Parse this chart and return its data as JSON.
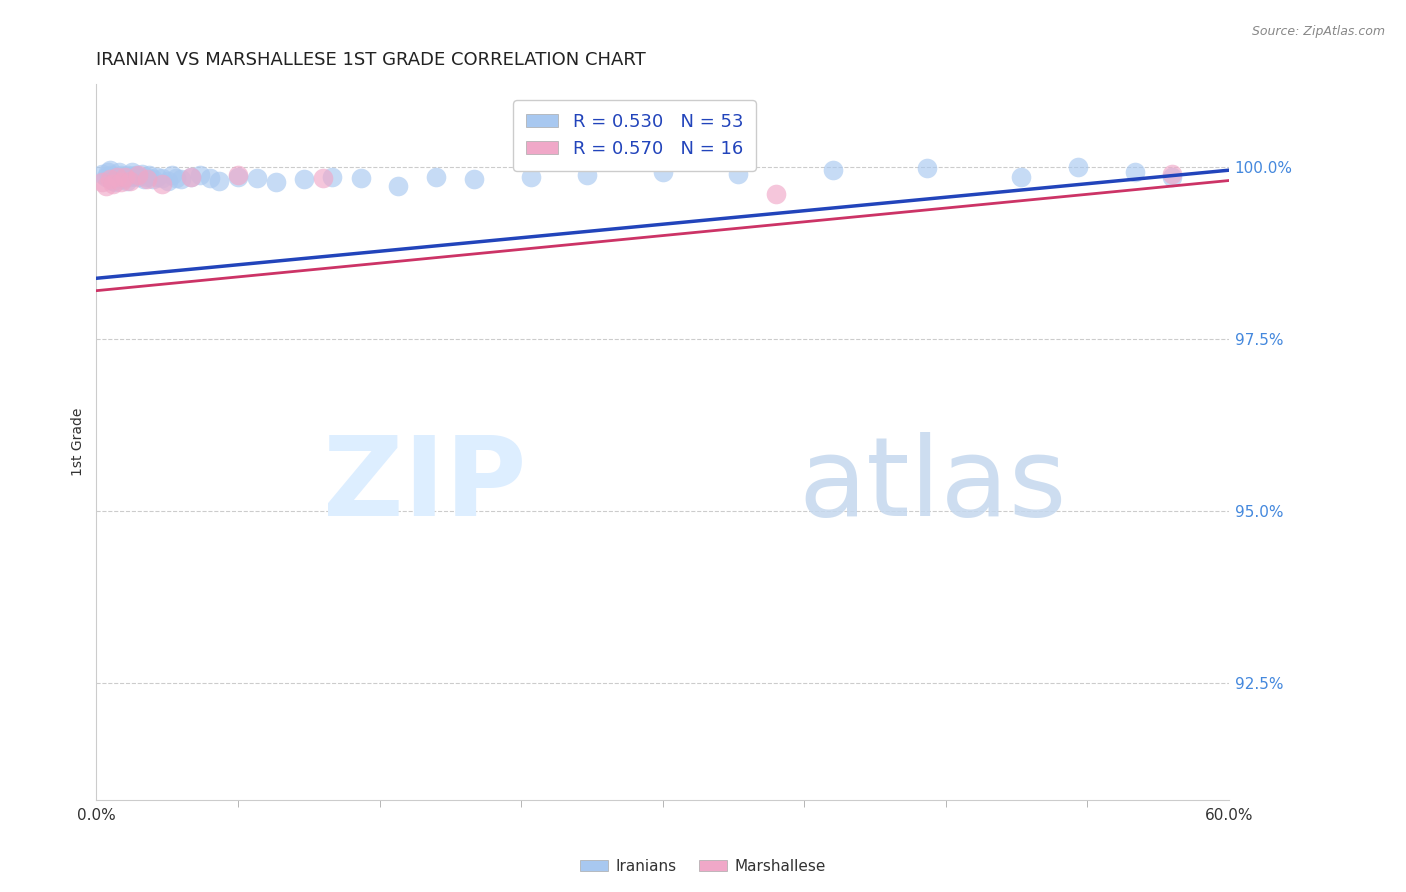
{
  "title": "IRANIAN VS MARSHALLESE 1ST GRADE CORRELATION CHART",
  "source": "Source: ZipAtlas.com",
  "ylabel": "1st Grade",
  "ytick_labels": [
    "100.0%",
    "97.5%",
    "95.0%",
    "92.5%"
  ],
  "ytick_values": [
    1.0,
    0.975,
    0.95,
    0.925
  ],
  "xlim": [
    0.0,
    0.6
  ],
  "ylim": [
    0.908,
    1.012
  ],
  "iranian_color": "#a8c8f0",
  "marshallese_color": "#f0a8c8",
  "iranian_line_color": "#2244bb",
  "marshallese_line_color": "#cc3366",
  "background_color": "#ffffff",
  "grid_color": "#cccccc",
  "right_axis_color": "#4488dd",
  "iranian_scatter_x": [
    0.003,
    0.005,
    0.006,
    0.007,
    0.008,
    0.009,
    0.01,
    0.011,
    0.012,
    0.013,
    0.014,
    0.015,
    0.016,
    0.017,
    0.018,
    0.019,
    0.02,
    0.021,
    0.022,
    0.024,
    0.025,
    0.027,
    0.028,
    0.03,
    0.032,
    0.035,
    0.038,
    0.04,
    0.042,
    0.045,
    0.05,
    0.055,
    0.06,
    0.065,
    0.075,
    0.085,
    0.095,
    0.11,
    0.125,
    0.14,
    0.16,
    0.18,
    0.2,
    0.23,
    0.26,
    0.3,
    0.34,
    0.39,
    0.44,
    0.49,
    0.52,
    0.55,
    0.57
  ],
  "iranian_scatter_y": [
    0.999,
    0.9985,
    0.9992,
    0.9995,
    0.9988,
    0.998,
    0.9978,
    0.9985,
    0.9992,
    0.9988,
    0.9982,
    0.9985,
    0.998,
    0.9988,
    0.9985,
    0.9992,
    0.9986,
    0.9988,
    0.9985,
    0.999,
    0.9982,
    0.9985,
    0.9988,
    0.9982,
    0.9985,
    0.9984,
    0.998,
    0.9988,
    0.9984,
    0.9982,
    0.9985,
    0.9988,
    0.9984,
    0.998,
    0.9985,
    0.9984,
    0.9978,
    0.9982,
    0.9985,
    0.9984,
    0.9972,
    0.9985,
    0.9982,
    0.9985,
    0.9988,
    0.9992,
    0.999,
    0.9995,
    0.9998,
    0.9985,
    1.0,
    0.9992,
    0.9985
  ],
  "marshallese_scatter_x": [
    0.003,
    0.005,
    0.007,
    0.009,
    0.011,
    0.013,
    0.015,
    0.018,
    0.022,
    0.027,
    0.035,
    0.05,
    0.075,
    0.12,
    0.36,
    0.57
  ],
  "marshallese_scatter_y": [
    0.9978,
    0.9972,
    0.9982,
    0.9975,
    0.9985,
    0.9978,
    0.9985,
    0.998,
    0.9988,
    0.9982,
    0.9975,
    0.9985,
    0.9988,
    0.9984,
    0.996,
    0.999
  ],
  "iranian_line_x0": 0.0,
  "iranian_line_x1": 0.6,
  "iranian_line_y0": 0.9838,
  "iranian_line_y1": 0.9995,
  "marshallese_line_x0": 0.0,
  "marshallese_line_x1": 0.6,
  "marshallese_line_y0": 0.982,
  "marshallese_line_y1": 0.998
}
